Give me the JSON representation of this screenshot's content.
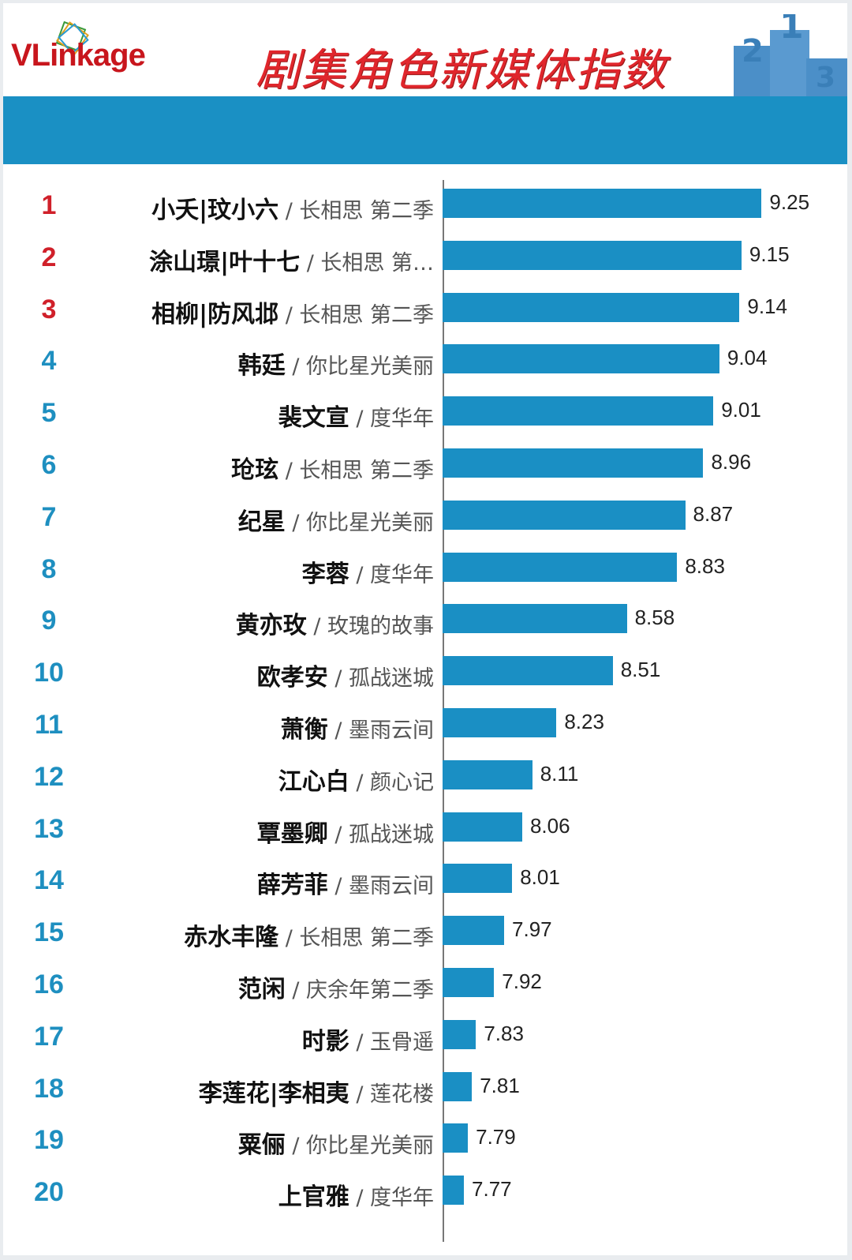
{
  "header": {
    "logo": "VLinkage",
    "title": "剧集角色新媒体指数",
    "podium_digits": [
      "2",
      "1",
      "3"
    ]
  },
  "colors": {
    "bar": "#1a8fc4",
    "rank_top3": "#d0202a",
    "rank_other": "#1e8fc0",
    "band": "#1a90c4",
    "title": "#e0262c"
  },
  "chart_data": {
    "type": "bar",
    "orientation": "horizontal",
    "title": "剧集角色新媒体指数",
    "ranks": [
      "1",
      "2",
      "3",
      "4",
      "5",
      "6",
      "7",
      "8",
      "9",
      "10",
      "11",
      "12",
      "13",
      "14",
      "15",
      "16",
      "17",
      "18",
      "19",
      "20"
    ],
    "categories": [
      "小夭|玟小六",
      "涂山璟|叶十七",
      "相柳|防风邶",
      "韩廷",
      "裴文宣",
      "玱玹",
      "纪星",
      "李蓉",
      "黄亦玫",
      "欧孝安",
      "萧衡",
      "江心白",
      "覃墨卿",
      "薛芳菲",
      "赤水丰隆",
      "范闲",
      "时影",
      "李莲花|李相夷",
      "粟俪",
      "上官雅"
    ],
    "shows": [
      "长相思 第二季",
      "长相思 第…",
      "长相思 第二季",
      "你比星光美丽",
      "度华年",
      "长相思 第二季",
      "你比星光美丽",
      "度华年",
      "玫瑰的故事",
      "孤战迷城",
      "墨雨云间",
      "颜心记",
      "孤战迷城",
      "墨雨云间",
      "长相思 第二季",
      "庆余年第二季",
      "玉骨遥",
      "莲花楼",
      "你比星光美丽",
      "度华年"
    ],
    "values": [
      9.25,
      9.15,
      9.14,
      9.04,
      9.01,
      8.96,
      8.87,
      8.83,
      8.58,
      8.51,
      8.23,
      8.11,
      8.06,
      8.01,
      7.97,
      7.92,
      7.83,
      7.81,
      7.79,
      7.77
    ],
    "value_labels": [
      "9.25",
      "9.15",
      "9.14",
      "9.04",
      "9.01",
      "8.96",
      "8.87",
      "8.83",
      "8.58",
      "8.51",
      "8.23",
      "8.11",
      "8.06",
      "8.01",
      "7.97",
      "7.92",
      "7.83",
      "7.81",
      "7.79",
      "7.77"
    ],
    "grid": false,
    "legend": "none"
  }
}
